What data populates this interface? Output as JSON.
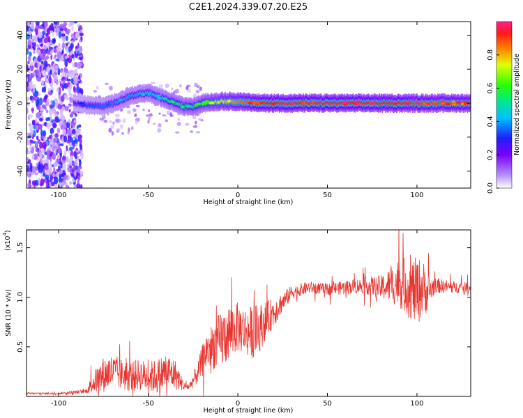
{
  "title": "C2E1.2024.339.07.20.E25",
  "chart_data": [
    {
      "type": "heatmap",
      "xlabel": "Height of straight line (km)",
      "ylabel": "Frequency (Hz)",
      "xlim": [
        -118,
        130
      ],
      "ylim": [
        -50,
        48
      ],
      "xticks": [
        -100,
        -50,
        0,
        50,
        100
      ],
      "xtick_labels": [
        "-100",
        "-50",
        "0",
        "50",
        "100"
      ],
      "yticks": [
        -40,
        -20,
        0,
        20,
        40
      ],
      "ytick_labels": [
        "-40",
        "-20",
        "0",
        "20",
        "40"
      ],
      "grid": false,
      "colorbar": {
        "label": "Normalized spectral amplitude",
        "range": [
          0,
          1
        ],
        "ticks": [
          0.0,
          0.2,
          0.4,
          0.6,
          0.8
        ],
        "tick_labels": [
          "0.0",
          "0.2",
          "0.4",
          "0.6",
          "0.8"
        ]
      },
      "ridge": {
        "x": [
          -92,
          -85,
          -75,
          -65,
          -58,
          -50,
          -45,
          -40,
          -35,
          -30,
          -25,
          -20,
          -10,
          0,
          10,
          20,
          40,
          60,
          80,
          100,
          130
        ],
        "y": [
          0,
          -1,
          -2,
          2,
          5,
          6,
          4,
          2,
          0,
          -2,
          -2,
          0,
          1,
          1,
          0,
          0,
          0,
          0,
          0,
          0,
          0
        ],
        "amplitude": [
          0.25,
          0.3,
          0.35,
          0.4,
          0.4,
          0.45,
          0.45,
          0.5,
          0.55,
          0.55,
          0.55,
          0.6,
          0.75,
          0.85,
          0.9,
          0.95,
          0.95,
          0.95,
          0.95,
          0.9,
          0.9
        ]
      },
      "noise_region_x": [
        -118,
        -90
      ]
    },
    {
      "type": "line",
      "xlabel": "Height of straight line (km)",
      "ylabel": "SNR (10 * v/v)",
      "y_multiplier": "(x10",
      "y_multiplier_exp": "4",
      "xlim": [
        -118,
        130
      ],
      "ylim": [
        0,
        1.68
      ],
      "xticks": [
        -100,
        -50,
        0,
        50,
        100
      ],
      "xtick_labels": [
        "-100",
        "-50",
        "0",
        "50",
        "100"
      ],
      "yticks": [
        0.5,
        1.0,
        1.5
      ],
      "ytick_labels": [
        "0.5",
        "1.0",
        "1.5"
      ],
      "grid": false,
      "color": "#e8352f",
      "series": [
        {
          "x": [
            -118,
            -100,
            -85,
            -80,
            -75,
            -70,
            -65,
            -60,
            -55,
            -50,
            -45,
            -40,
            -35,
            -30,
            -27,
            -22,
            -18,
            -15,
            -10,
            -5,
            0,
            5,
            10,
            15,
            20,
            25,
            30,
            40,
            50,
            60,
            70,
            80,
            85,
            90,
            95,
            100,
            103,
            106,
            110,
            120,
            130
          ],
          "y": [
            0.03,
            0.03,
            0.05,
            0.15,
            0.22,
            0.25,
            0.22,
            0.2,
            0.22,
            0.2,
            0.2,
            0.25,
            0.22,
            0.1,
            0.1,
            0.25,
            0.45,
            0.5,
            0.55,
            0.65,
            0.7,
            0.65,
            0.65,
            0.75,
            0.85,
            0.95,
            1.05,
            1.1,
            1.08,
            1.1,
            1.12,
            1.1,
            1.12,
            1.15,
            1.1,
            1.05,
            1.1,
            1.05,
            1.12,
            1.1,
            1.1
          ],
          "amplitude": [
            0.01,
            0.01,
            0.02,
            0.12,
            0.18,
            0.18,
            0.16,
            0.16,
            0.16,
            0.16,
            0.18,
            0.2,
            0.16,
            0.04,
            0.04,
            0.12,
            0.2,
            0.22,
            0.3,
            0.3,
            0.25,
            0.25,
            0.28,
            0.2,
            0.15,
            0.1,
            0.07,
            0.06,
            0.06,
            0.07,
            0.08,
            0.12,
            0.18,
            0.25,
            0.3,
            0.35,
            0.3,
            0.2,
            0.08,
            0.06,
            0.05
          ]
        }
      ]
    }
  ]
}
